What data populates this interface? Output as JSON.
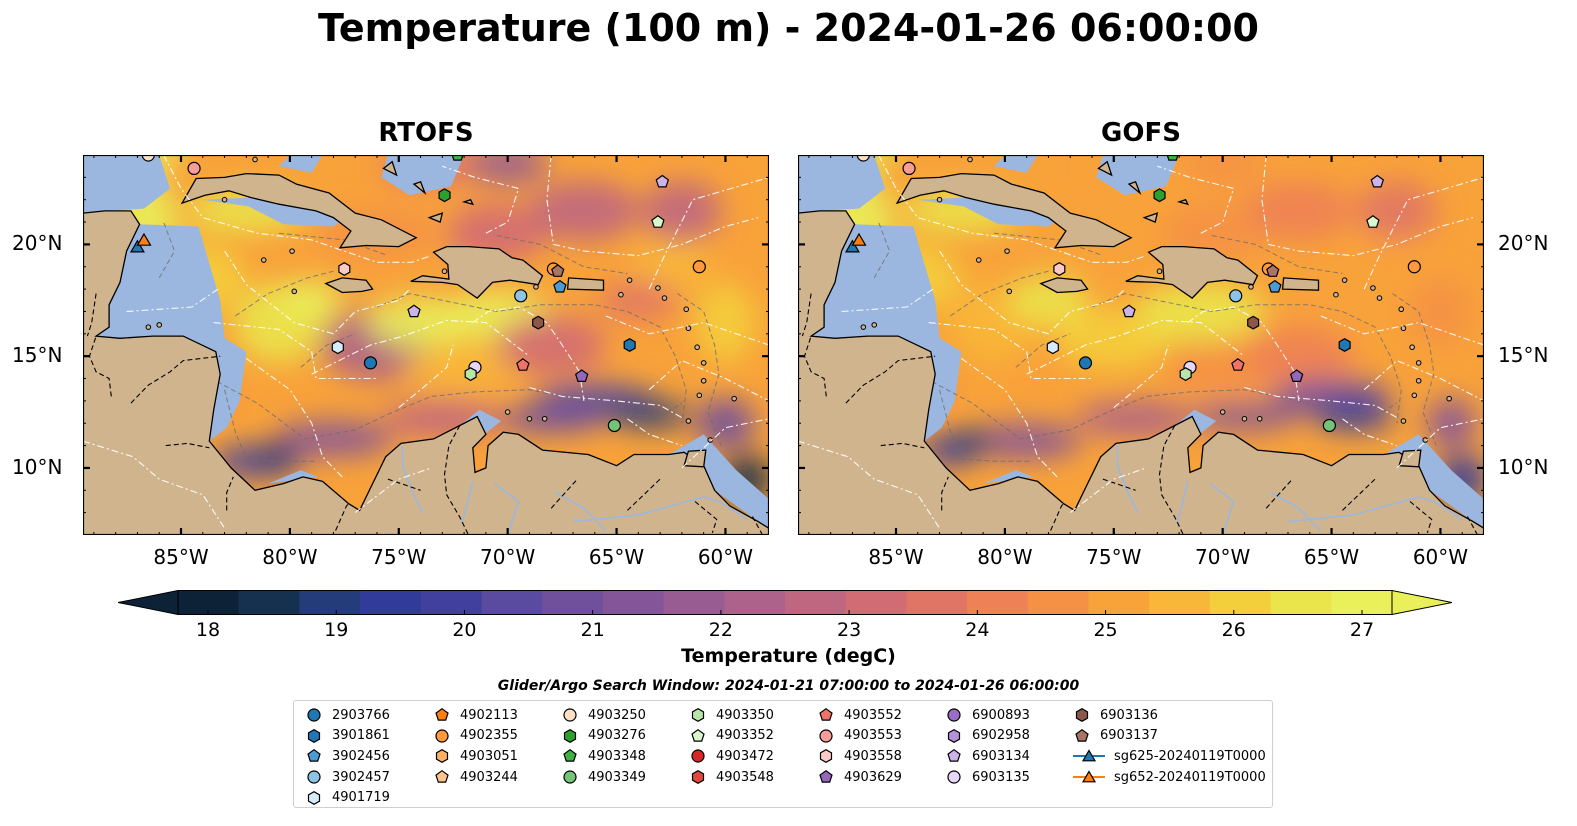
{
  "title": "Temperature (100 m) - 2024-01-26 06:00:00",
  "panels": [
    {
      "title": "RTOFS",
      "variant": "rtofs"
    },
    {
      "title": "GOFS",
      "variant": "gofs"
    }
  ],
  "axes": {
    "lon_ticks": [
      "85°W",
      "80°W",
      "75°W",
      "70°W",
      "65°W",
      "60°W"
    ],
    "lon_values": [
      -85,
      -80,
      -75,
      -70,
      -65,
      -60
    ],
    "lat_ticks": [
      "20°N",
      "15°N",
      "10°N"
    ],
    "lat_values": [
      20,
      15,
      10
    ],
    "lon_range": [
      -89.5,
      -58.0
    ],
    "lat_range": [
      7.0,
      24.0
    ]
  },
  "colorbar": {
    "label": "Temperature (degC)",
    "ticks": [
      "18",
      "19",
      "20",
      "21",
      "22",
      "23",
      "24",
      "25",
      "26",
      "27"
    ],
    "range": [
      18,
      27
    ],
    "colors": [
      "#0d2236",
      "#16304f",
      "#243c7a",
      "#313c9a",
      "#41409f",
      "#5a4aa0",
      "#704f9d",
      "#855599",
      "#985c92",
      "#ac628a",
      "#bf6681",
      "#d26c74",
      "#e17565",
      "#ee8155",
      "#f59145",
      "#f8a23a",
      "#f8b738",
      "#f4cf3c",
      "#eae54a",
      "#e9f05a"
    ]
  },
  "search_window": "Glider/Argo Search Window: 2024-01-21 07:00:00 to 2024-01-26 06:00:00",
  "legend": [
    {
      "label": "2903766",
      "color": "#1f77b4",
      "marker": "circle"
    },
    {
      "label": "3901861",
      "color": "#1f77b4",
      "marker": "hexagon"
    },
    {
      "label": "3902456",
      "color": "#4c9bd4",
      "marker": "pentagon"
    },
    {
      "label": "3902457",
      "color": "#8ec3e8",
      "marker": "circle"
    },
    {
      "label": "4901719",
      "color": "#d6ecfa",
      "marker": "hexagon"
    },
    {
      "label": "4902113",
      "color": "#ff7f0e",
      "marker": "pentagon"
    },
    {
      "label": "4902355",
      "color": "#ff9a3c",
      "marker": "circle"
    },
    {
      "label": "4903051",
      "color": "#ffb062",
      "marker": "hexagon"
    },
    {
      "label": "4903244",
      "color": "#ffc48e",
      "marker": "pentagon"
    },
    {
      "label": "4903250",
      "color": "#ffe0c2",
      "marker": "circle"
    },
    {
      "label": "4903276",
      "color": "#2ca02c",
      "marker": "hexagon"
    },
    {
      "label": "4903348",
      "color": "#3fb13f",
      "marker": "pentagon"
    },
    {
      "label": "4903349",
      "color": "#74c476",
      "marker": "circle"
    },
    {
      "label": "4903350",
      "color": "#b8e6a8",
      "marker": "hexagon"
    },
    {
      "label": "4903352",
      "color": "#d9f7cc",
      "marker": "pentagon"
    },
    {
      "label": "4903472",
      "color": "#d62728",
      "marker": "circle"
    },
    {
      "label": "4903548",
      "color": "#e0483d",
      "marker": "hexagon"
    },
    {
      "label": "4903552",
      "color": "#f0736a",
      "marker": "pentagon"
    },
    {
      "label": "4903553",
      "color": "#f79c96",
      "marker": "circle"
    },
    {
      "label": "4903558",
      "color": "#fbc9c6",
      "marker": "hexagon"
    },
    {
      "label": "4903629",
      "color": "#9467bd",
      "marker": "pentagon"
    },
    {
      "label": "6900893",
      "color": "#9b6dc6",
      "marker": "circle"
    },
    {
      "label": "6902958",
      "color": "#b592d8",
      "marker": "hexagon"
    },
    {
      "label": "6903134",
      "color": "#cdb4e8",
      "marker": "pentagon"
    },
    {
      "label": "6903135",
      "color": "#e6d6f7",
      "marker": "circle"
    },
    {
      "label": "6903136",
      "color": "#8c564b",
      "marker": "hexagon"
    },
    {
      "label": "6903137",
      "color": "#a87565",
      "marker": "pentagon"
    },
    {
      "label": "sg625-20240119T0000",
      "color": "#1f77b4",
      "marker": "triangle"
    },
    {
      "label": "sg652-20240119T0000",
      "color": "#ff7f0e",
      "marker": "triangle"
    }
  ],
  "markers": [
    {
      "id": "4903250",
      "lon": -86.5,
      "lat": 24.0
    },
    {
      "id": "4903553",
      "lon": -84.4,
      "lat": 23.4
    },
    {
      "id": "4903348",
      "lon": -72.3,
      "lat": 24.0
    },
    {
      "id": "4903276",
      "lon": -72.9,
      "lat": 22.2
    },
    {
      "id": "6903134",
      "lon": -62.9,
      "lat": 22.8
    },
    {
      "id": "4903352",
      "lon": -63.1,
      "lat": 21.0
    },
    {
      "id": "sg625-20240119T0000",
      "lon": -87.0,
      "lat": 19.9
    },
    {
      "id": "sg652-20240119T0000",
      "lon": -86.7,
      "lat": 20.2
    },
    {
      "id": "4903558",
      "lon": -77.5,
      "lat": 18.9
    },
    {
      "id": "4902355",
      "lon": -67.9,
      "lat": 18.9
    },
    {
      "id": "6903137",
      "lon": -67.7,
      "lat": 18.8
    },
    {
      "id": "3902456",
      "lon": -67.6,
      "lat": 18.1
    },
    {
      "id": "4902355",
      "lon": -61.2,
      "lat": 19.0
    },
    {
      "id": "3902457",
      "lon": -69.4,
      "lat": 17.7
    },
    {
      "id": "6903134",
      "lon": -74.3,
      "lat": 17.0
    },
    {
      "id": "6903136",
      "lon": -68.6,
      "lat": 16.5
    },
    {
      "id": "4901719",
      "lon": -77.8,
      "lat": 15.4
    },
    {
      "id": "3901861",
      "lon": -64.4,
      "lat": 15.5
    },
    {
      "id": "2903766",
      "lon": -76.3,
      "lat": 14.7
    },
    {
      "id": "6903135",
      "lon": -71.5,
      "lat": 14.5
    },
    {
      "id": "4903350",
      "lon": -71.7,
      "lat": 14.2
    },
    {
      "id": "4903552",
      "lon": -69.3,
      "lat": 14.6
    },
    {
      "id": "4903629",
      "lon": -66.6,
      "lat": 14.1
    },
    {
      "id": "4903349",
      "lon": -65.1,
      "lat": 11.9
    }
  ]
}
